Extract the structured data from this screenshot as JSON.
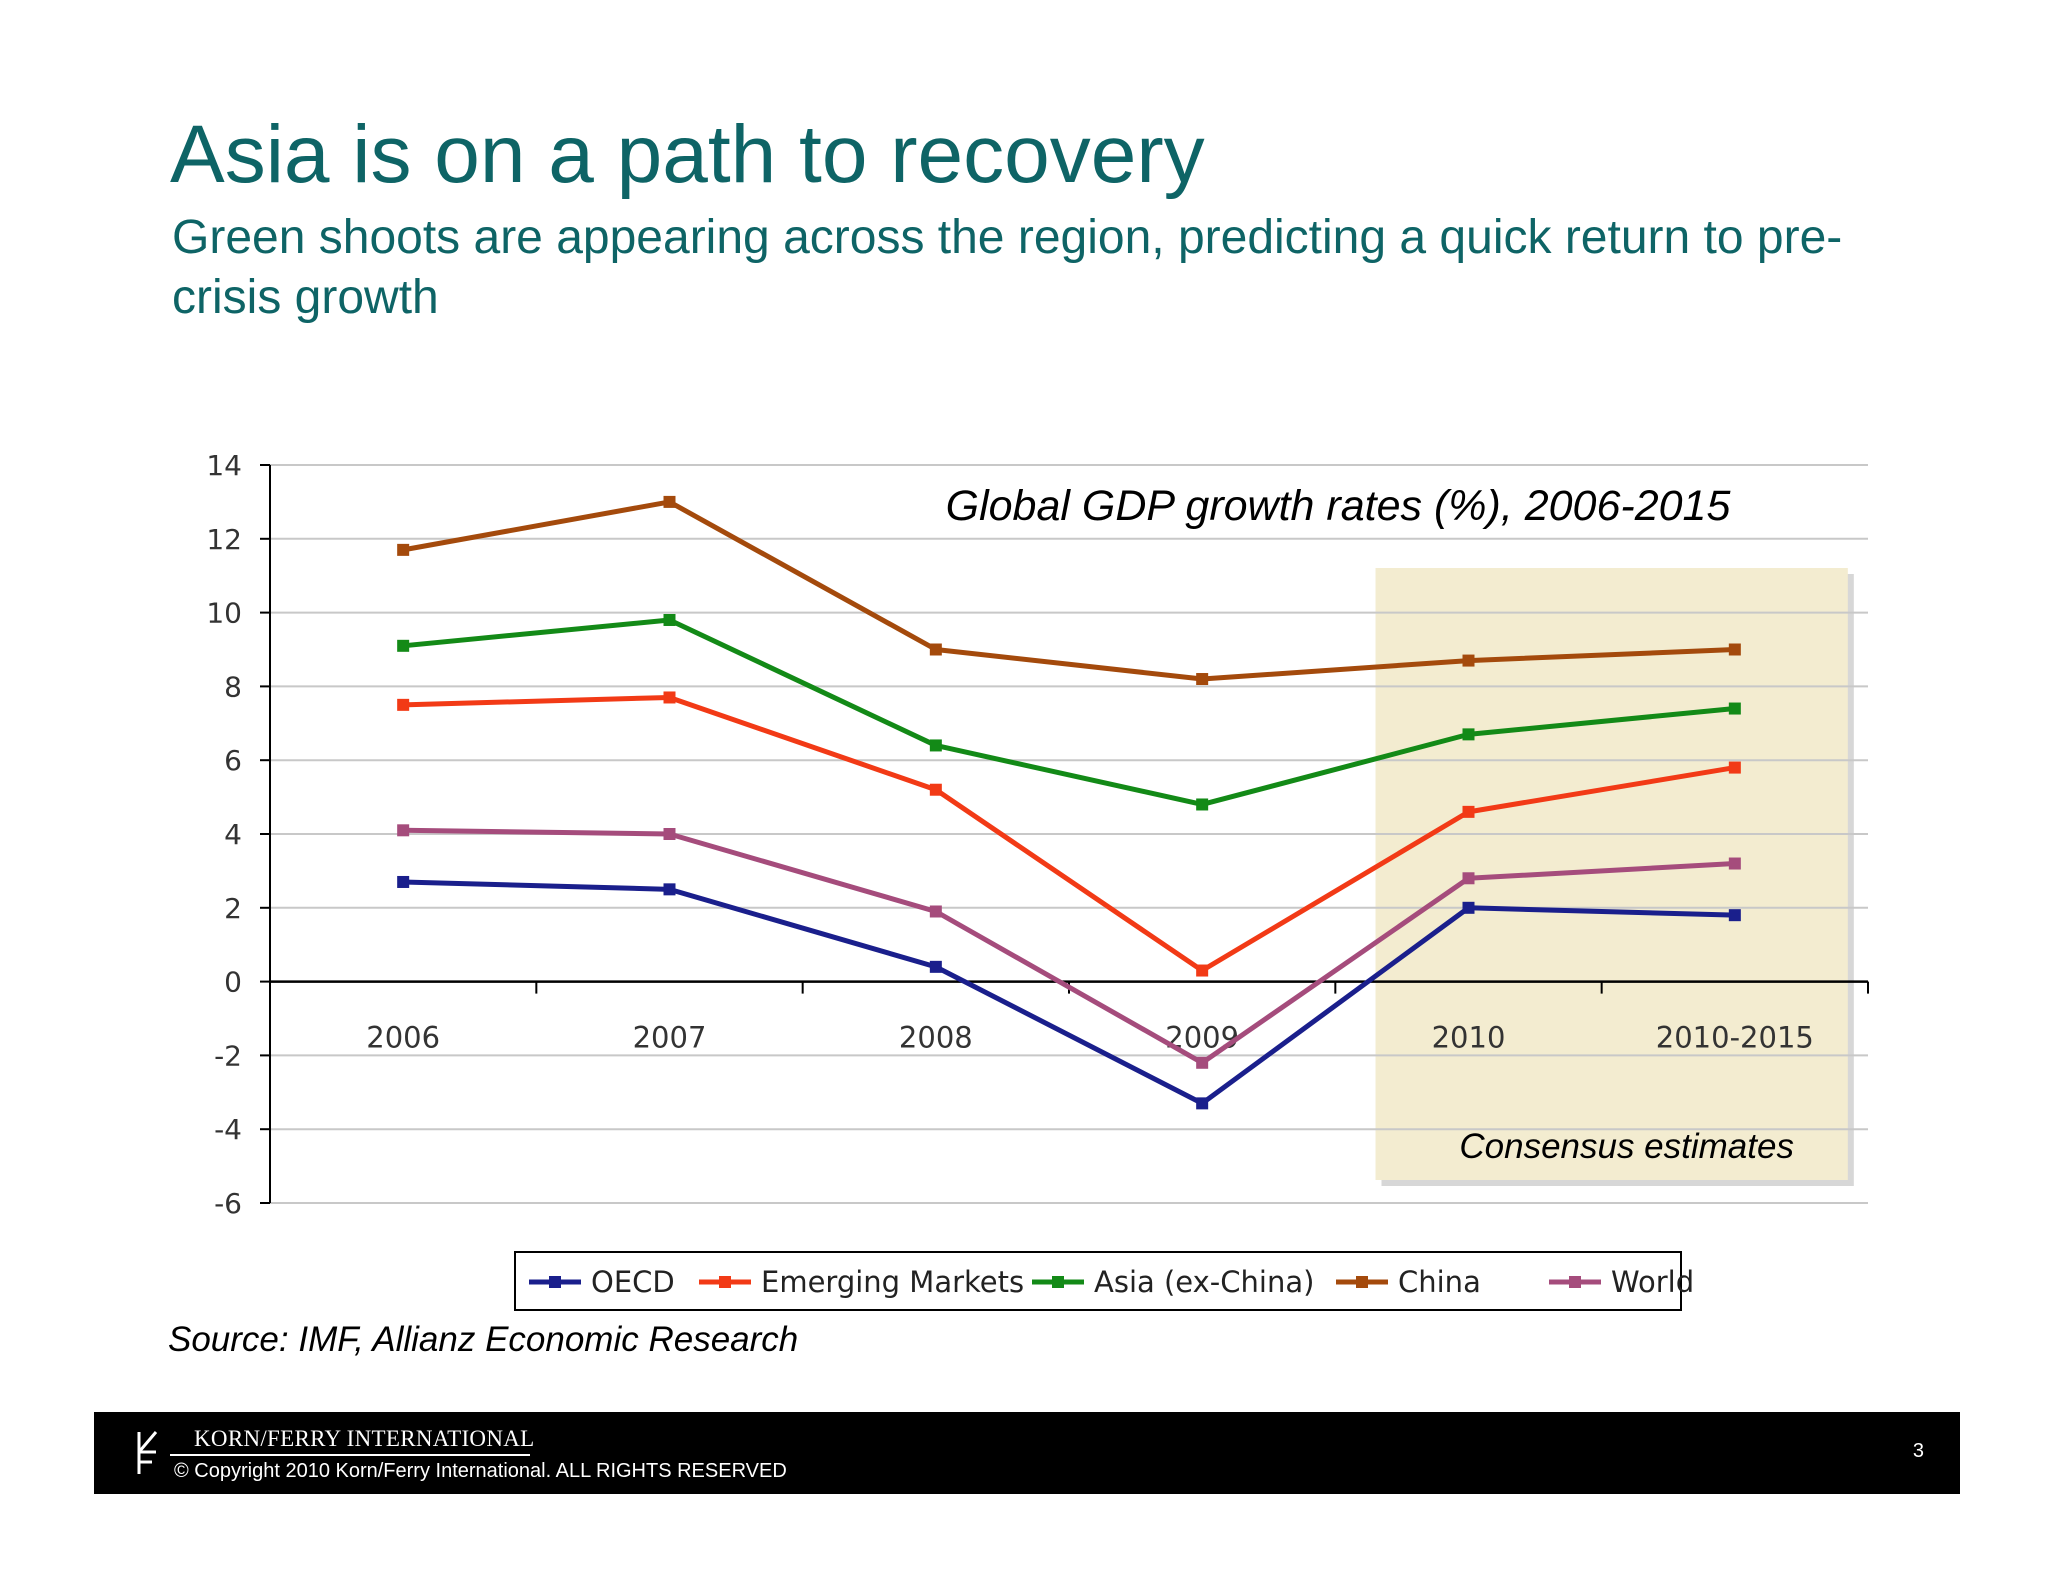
{
  "slide": {
    "title": "Asia is on a path to recovery",
    "subtitle": "Green shoots are appearing across the region, predicting a quick return to pre-crisis growth",
    "source": "Source: IMF, Allianz Economic Research"
  },
  "chart_data": {
    "type": "line",
    "title": "Global GDP growth rates (%), 2006-2015",
    "xlabel": "",
    "ylabel": "",
    "categories": [
      "2006",
      "2007",
      "2008",
      "2009",
      "2010",
      "2010-2015"
    ],
    "ylim": [
      -6,
      14
    ],
    "yticks": [
      "14",
      "12",
      "10",
      "8",
      "6",
      "4",
      "2",
      "0",
      "-2",
      "-4",
      "-6"
    ],
    "grid": true,
    "legend_position": "bottom",
    "annotation": {
      "text": "Consensus estimates",
      "categories": [
        "2010",
        "2010-2015"
      ],
      "color": "#f3ecd0"
    },
    "series": [
      {
        "name": "OECD",
        "color": "#1a1f8c",
        "values": [
          2.7,
          2.5,
          0.4,
          -3.3,
          2.0,
          1.8
        ]
      },
      {
        "name": "Emerging Markets",
        "color": "#f23a16",
        "values": [
          7.5,
          7.7,
          5.2,
          0.3,
          4.6,
          5.8
        ]
      },
      {
        "name": "Asia (ex-China)",
        "color": "#138a17",
        "values": [
          9.1,
          9.8,
          6.4,
          4.8,
          6.7,
          7.4
        ]
      },
      {
        "name": "China",
        "color": "#a44a0c",
        "values": [
          11.7,
          13.0,
          9.0,
          8.2,
          8.7,
          9.0
        ]
      },
      {
        "name": "World",
        "color": "#a54c7c",
        "values": [
          4.1,
          4.0,
          1.9,
          -2.2,
          2.8,
          3.2
        ]
      }
    ]
  },
  "footer": {
    "company": "KORN/FERRY INTERNATIONAL",
    "copyright": "© Copyright 2010 Korn/Ferry International. ALL RIGHTS RESERVED",
    "page_number": "3"
  }
}
